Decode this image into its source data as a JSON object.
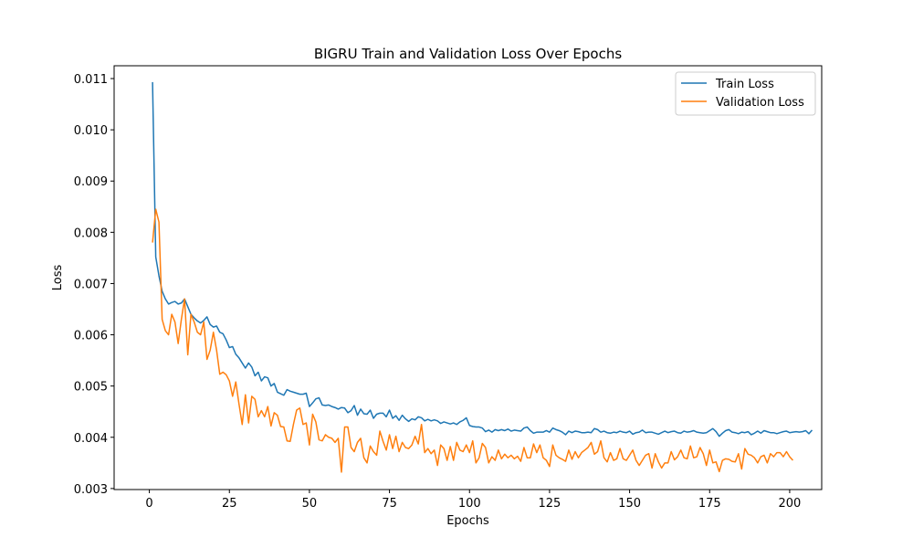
{
  "chart_data": {
    "type": "line",
    "title": "BIGRU Train and Validation Loss Over Epochs",
    "xlabel": "Epochs",
    "ylabel": "Loss",
    "xlim": [
      -11,
      210
    ],
    "ylim": [
      0.00298,
      0.01125
    ],
    "xticks": [
      0,
      25,
      50,
      75,
      100,
      125,
      150,
      175,
      200
    ],
    "yticks": [
      0.003,
      0.004,
      0.005,
      0.006,
      0.007,
      0.008,
      0.009,
      0.01,
      0.011
    ],
    "ytick_labels": [
      "0.003",
      "0.004",
      "0.005",
      "0.006",
      "0.007",
      "0.008",
      "0.009",
      "0.010",
      "0.011"
    ],
    "grid": false,
    "legend_position": "top-right",
    "x_start": 1,
    "series": [
      {
        "name": "Train Loss",
        "color": "#1f77b4",
        "values": [
          0.01093,
          0.00752,
          0.00715,
          0.00685,
          0.0067,
          0.0066,
          0.00663,
          0.00665,
          0.0066,
          0.00662,
          0.0067,
          0.00655,
          0.0064,
          0.00633,
          0.00627,
          0.00623,
          0.00628,
          0.00635,
          0.0062,
          0.00615,
          0.00617,
          0.00605,
          0.00602,
          0.0059,
          0.00575,
          0.00577,
          0.00562,
          0.00555,
          0.00545,
          0.00535,
          0.00545,
          0.00537,
          0.0052,
          0.00527,
          0.0051,
          0.00518,
          0.00516,
          0.005,
          0.00505,
          0.00488,
          0.00485,
          0.00482,
          0.00493,
          0.0049,
          0.00488,
          0.00486,
          0.00484,
          0.00484,
          0.00486,
          0.0046,
          0.00467,
          0.00475,
          0.00477,
          0.00463,
          0.00462,
          0.00463,
          0.0046,
          0.00458,
          0.00455,
          0.00458,
          0.00457,
          0.00448,
          0.00452,
          0.00462,
          0.00443,
          0.00455,
          0.00446,
          0.00445,
          0.00453,
          0.00437,
          0.00445,
          0.00447,
          0.00447,
          0.0044,
          0.00453,
          0.00437,
          0.00442,
          0.00433,
          0.00443,
          0.00436,
          0.00431,
          0.00436,
          0.00434,
          0.0044,
          0.00438,
          0.00432,
          0.00435,
          0.00432,
          0.00434,
          0.00432,
          0.00427,
          0.0043,
          0.00428,
          0.00426,
          0.00428,
          0.00425,
          0.0043,
          0.00433,
          0.00438,
          0.00423,
          0.00421,
          0.0042,
          0.0042,
          0.00418,
          0.00411,
          0.00414,
          0.0041,
          0.00415,
          0.00413,
          0.00415,
          0.00413,
          0.00416,
          0.00412,
          0.00414,
          0.00413,
          0.00412,
          0.00418,
          0.0042,
          0.00413,
          0.00408,
          0.0041,
          0.0041,
          0.0041,
          0.00413,
          0.0041,
          0.00418,
          0.00415,
          0.00413,
          0.0041,
          0.00405,
          0.00412,
          0.00409,
          0.00412,
          0.00411,
          0.00409,
          0.00409,
          0.0041,
          0.00409,
          0.00417,
          0.00415,
          0.0041,
          0.00412,
          0.00409,
          0.00408,
          0.0041,
          0.00409,
          0.00412,
          0.0041,
          0.00409,
          0.00412,
          0.00406,
          0.00409,
          0.0041,
          0.00414,
          0.00409,
          0.0041,
          0.0041,
          0.00408,
          0.00406,
          0.00409,
          0.00412,
          0.00409,
          0.00411,
          0.00412,
          0.00409,
          0.00408,
          0.00412,
          0.0041,
          0.00411,
          0.00413,
          0.0041,
          0.00409,
          0.00408,
          0.00409,
          0.00413,
          0.00417,
          0.00411,
          0.00402,
          0.00408,
          0.00413,
          0.00415,
          0.0041,
          0.00409,
          0.00407,
          0.0041,
          0.00409,
          0.00411,
          0.00405,
          0.00408,
          0.00412,
          0.00408,
          0.00413,
          0.00411,
          0.00409,
          0.00409,
          0.00407,
          0.00409,
          0.00411,
          0.00412,
          0.00409,
          0.0041,
          0.00411,
          0.0041,
          0.00411,
          0.00413,
          0.00407,
          0.00414
        ]
      },
      {
        "name": "Validation Loss",
        "color": "#ff7f0e",
        "values": [
          0.0078,
          0.00845,
          0.0082,
          0.0063,
          0.00608,
          0.006,
          0.0064,
          0.00625,
          0.00583,
          0.0063,
          0.0067,
          0.00561,
          0.0064,
          0.00625,
          0.00605,
          0.006,
          0.00625,
          0.00552,
          0.0057,
          0.00605,
          0.0057,
          0.00523,
          0.00527,
          0.00522,
          0.0051,
          0.0048,
          0.00508,
          0.00465,
          0.00425,
          0.00483,
          0.00428,
          0.0048,
          0.00474,
          0.0044,
          0.00452,
          0.0044,
          0.0046,
          0.00422,
          0.00448,
          0.00443,
          0.00421,
          0.0042,
          0.00393,
          0.00392,
          0.00425,
          0.00453,
          0.00457,
          0.00425,
          0.00428,
          0.00385,
          0.00445,
          0.0043,
          0.00395,
          0.00393,
          0.00405,
          0.004,
          0.00398,
          0.0039,
          0.00398,
          0.00332,
          0.0042,
          0.0042,
          0.0038,
          0.00372,
          0.0039,
          0.00398,
          0.0036,
          0.0035,
          0.00383,
          0.00372,
          0.00365,
          0.00412,
          0.00392,
          0.00375,
          0.00405,
          0.00378,
          0.00402,
          0.00372,
          0.0039,
          0.0038,
          0.00378,
          0.00385,
          0.00402,
          0.00387,
          0.00425,
          0.0037,
          0.00378,
          0.00368,
          0.00375,
          0.00345,
          0.00385,
          0.00378,
          0.00355,
          0.00382,
          0.00355,
          0.0039,
          0.00375,
          0.00372,
          0.00385,
          0.0037,
          0.00393,
          0.0035,
          0.0036,
          0.00388,
          0.0038,
          0.0035,
          0.00362,
          0.00355,
          0.00375,
          0.00358,
          0.00367,
          0.0036,
          0.00365,
          0.00358,
          0.00363,
          0.00353,
          0.0038,
          0.0036,
          0.0036,
          0.00387,
          0.0037,
          0.00385,
          0.0036,
          0.00355,
          0.00343,
          0.00385,
          0.00365,
          0.0036,
          0.00357,
          0.00353,
          0.00375,
          0.00357,
          0.00372,
          0.0036,
          0.0037,
          0.00375,
          0.0038,
          0.0039,
          0.00367,
          0.00372,
          0.00393,
          0.0036,
          0.00352,
          0.0037,
          0.00355,
          0.00358,
          0.00378,
          0.00358,
          0.00355,
          0.00365,
          0.00375,
          0.00355,
          0.00345,
          0.00355,
          0.00365,
          0.00368,
          0.0034,
          0.00368,
          0.00352,
          0.0034,
          0.0035,
          0.0035,
          0.00372,
          0.00356,
          0.00362,
          0.00375,
          0.0036,
          0.00358,
          0.00383,
          0.0036,
          0.00362,
          0.0038,
          0.00368,
          0.00345,
          0.00375,
          0.0035,
          0.00352,
          0.00333,
          0.00355,
          0.00358,
          0.00357,
          0.00353,
          0.00352,
          0.00368,
          0.00338,
          0.00378,
          0.00367,
          0.00365,
          0.0036,
          0.0035,
          0.00362,
          0.00365,
          0.0035,
          0.00368,
          0.00362,
          0.0037,
          0.0037,
          0.00362,
          0.00372,
          0.00362,
          0.00355
        ]
      }
    ]
  }
}
